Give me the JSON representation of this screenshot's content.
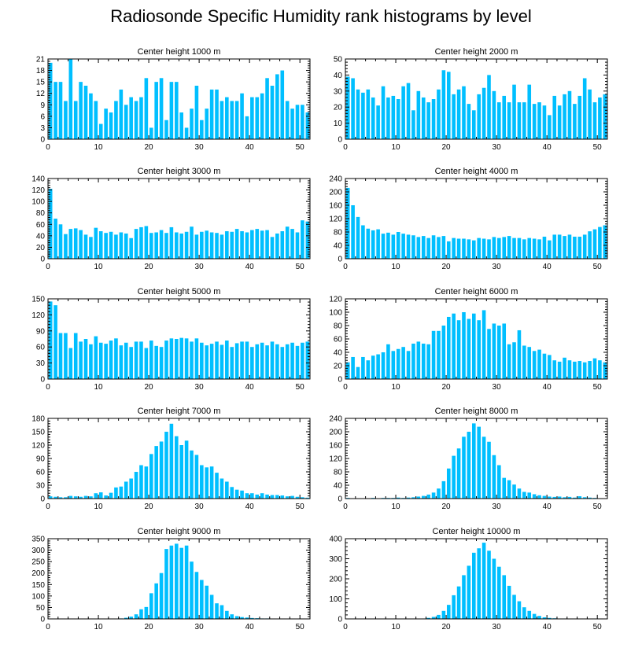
{
  "title": "Radiosonde Specific Humidity rank histograms by level",
  "bar_color": "#00bfff",
  "chart_data": [
    {
      "type": "bar",
      "title": "Center height 1000 m",
      "xlim": [
        0,
        52
      ],
      "ylim": [
        0,
        21
      ],
      "yticks": [
        0,
        3,
        6,
        9,
        12,
        15,
        18,
        21
      ],
      "xticks": [
        0,
        10,
        20,
        30,
        40,
        50
      ],
      "values": [
        20,
        15,
        15,
        10,
        21,
        10,
        15,
        14,
        12,
        10,
        4,
        8,
        7,
        10,
        13,
        9,
        11,
        10,
        11,
        16,
        3,
        15,
        16,
        5,
        15,
        15,
        7,
        3,
        8,
        14,
        5,
        8,
        13,
        13,
        10,
        11,
        10,
        10,
        12,
        6,
        11,
        11,
        12,
        16,
        14,
        17,
        18,
        10,
        8,
        9,
        9,
        7
      ]
    },
    {
      "type": "bar",
      "title": "Center height 2000 m",
      "xlim": [
        0,
        52
      ],
      "ylim": [
        0,
        50
      ],
      "yticks": [
        0,
        10,
        20,
        30,
        40,
        50
      ],
      "xticks": [
        0,
        10,
        20,
        30,
        40,
        50
      ],
      "values": [
        39,
        38,
        31,
        29,
        31,
        26,
        21,
        33,
        26,
        27,
        25,
        33,
        35,
        18,
        30,
        26,
        23,
        25,
        31,
        43,
        42,
        28,
        31,
        33,
        22,
        18,
        28,
        32,
        40,
        30,
        23,
        27,
        23,
        34,
        23,
        23,
        34,
        22,
        23,
        21,
        15,
        27,
        21,
        28,
        30,
        22,
        27,
        38,
        31,
        23,
        26,
        28
      ]
    },
    {
      "type": "bar",
      "title": "Center height 3000 m",
      "xlim": [
        0,
        52
      ],
      "ylim": [
        0,
        140
      ],
      "yticks": [
        0,
        20,
        40,
        60,
        80,
        100,
        120,
        140
      ],
      "xticks": [
        0,
        10,
        20,
        30,
        40,
        50
      ],
      "values": [
        122,
        70,
        60,
        43,
        52,
        53,
        50,
        42,
        38,
        54,
        48,
        45,
        47,
        42,
        46,
        44,
        36,
        52,
        55,
        57,
        45,
        46,
        50,
        45,
        55,
        46,
        44,
        47,
        56,
        42,
        47,
        49,
        46,
        45,
        42,
        48,
        47,
        52,
        48,
        46,
        50,
        52,
        49,
        50,
        38,
        44,
        48,
        56,
        52,
        46,
        67,
        65
      ]
    },
    {
      "type": "bar",
      "title": "Center height 4000 m",
      "xlim": [
        0,
        52
      ],
      "ylim": [
        0,
        240
      ],
      "yticks": [
        0,
        40,
        80,
        120,
        160,
        200,
        240
      ],
      "xticks": [
        0,
        10,
        20,
        30,
        40,
        50
      ],
      "values": [
        212,
        160,
        125,
        100,
        90,
        85,
        88,
        75,
        78,
        72,
        80,
        75,
        72,
        70,
        65,
        68,
        62,
        70,
        65,
        68,
        52,
        62,
        60,
        60,
        58,
        55,
        62,
        60,
        58,
        65,
        62,
        65,
        68,
        62,
        62,
        58,
        62,
        60,
        58,
        66,
        55,
        72,
        72,
        68,
        72,
        66,
        66,
        72,
        82,
        88,
        95,
        100
      ]
    },
    {
      "type": "bar",
      "title": "Center height 5000 m",
      "xlim": [
        0,
        52
      ],
      "ylim": [
        0,
        150
      ],
      "yticks": [
        0,
        30,
        60,
        90,
        120,
        150
      ],
      "xticks": [
        0,
        10,
        20,
        30,
        40,
        50
      ],
      "values": [
        145,
        138,
        86,
        86,
        58,
        86,
        70,
        75,
        65,
        80,
        68,
        66,
        72,
        76,
        63,
        68,
        60,
        70,
        70,
        58,
        72,
        62,
        60,
        72,
        76,
        75,
        77,
        76,
        70,
        76,
        68,
        63,
        66,
        70,
        64,
        72,
        60,
        67,
        70,
        70,
        60,
        65,
        68,
        63,
        70,
        65,
        60,
        65,
        68,
        62,
        68,
        70
      ]
    },
    {
      "type": "bar",
      "title": "Center height 6000 m",
      "xlim": [
        0,
        52
      ],
      "ylim": [
        0,
        120
      ],
      "yticks": [
        0,
        20,
        40,
        60,
        80,
        100,
        120
      ],
      "xticks": [
        0,
        10,
        20,
        30,
        40,
        50
      ],
      "values": [
        25,
        33,
        18,
        33,
        28,
        35,
        37,
        40,
        52,
        42,
        45,
        48,
        42,
        53,
        56,
        53,
        52,
        72,
        72,
        80,
        93,
        98,
        88,
        100,
        90,
        98,
        88,
        103,
        75,
        83,
        80,
        83,
        52,
        55,
        73,
        50,
        48,
        42,
        44,
        38,
        36,
        28,
        26,
        32,
        28,
        26,
        27,
        25,
        27,
        31,
        28,
        25
      ]
    },
    {
      "type": "bar",
      "title": "Center height 7000 m",
      "xlim": [
        0,
        52
      ],
      "ylim": [
        0,
        180
      ],
      "yticks": [
        0,
        30,
        60,
        90,
        120,
        150,
        180
      ],
      "xticks": [
        0,
        10,
        20,
        30,
        40,
        50
      ],
      "values": [
        5,
        4,
        3,
        3,
        6,
        5,
        4,
        6,
        5,
        12,
        14,
        7,
        13,
        25,
        27,
        38,
        45,
        60,
        75,
        72,
        100,
        118,
        128,
        150,
        168,
        140,
        120,
        130,
        108,
        98,
        75,
        70,
        72,
        58,
        45,
        38,
        26,
        20,
        18,
        12,
        12,
        9,
        12,
        9,
        8,
        8,
        7,
        5,
        6,
        4,
        3,
        2
      ]
    },
    {
      "type": "bar",
      "title": "Center height 8000 m",
      "xlim": [
        0,
        52
      ],
      "ylim": [
        0,
        240
      ],
      "yticks": [
        0,
        40,
        80,
        120,
        160,
        200,
        240
      ],
      "xticks": [
        0,
        10,
        20,
        30,
        40,
        50
      ],
      "values": [
        2,
        1,
        1,
        1,
        1,
        2,
        1,
        2,
        2,
        2,
        3,
        2,
        3,
        4,
        6,
        8,
        12,
        18,
        30,
        52,
        90,
        128,
        150,
        185,
        200,
        225,
        215,
        185,
        170,
        130,
        100,
        62,
        55,
        42,
        30,
        20,
        18,
        13,
        10,
        8,
        6,
        5,
        6,
        4,
        5,
        3,
        7,
        4,
        3,
        2,
        1,
        1
      ]
    },
    {
      "type": "bar",
      "title": "Center height 9000 m",
      "xlim": [
        0,
        52
      ],
      "ylim": [
        0,
        350
      ],
      "yticks": [
        0,
        50,
        100,
        150,
        200,
        250,
        300,
        350
      ],
      "xticks": [
        0,
        10,
        20,
        30,
        40,
        50
      ],
      "values": [
        1,
        1,
        1,
        1,
        1,
        1,
        1,
        1,
        1,
        1,
        1,
        1,
        1,
        1,
        2,
        5,
        10,
        20,
        42,
        52,
        112,
        155,
        200,
        305,
        320,
        328,
        310,
        320,
        250,
        205,
        170,
        145,
        105,
        68,
        60,
        35,
        20,
        12,
        8,
        6,
        4,
        3,
        2,
        2,
        1,
        1,
        1,
        1,
        1,
        1,
        1,
        1
      ]
    },
    {
      "type": "bar",
      "title": "Center height 10000 m",
      "xlim": [
        0,
        52
      ],
      "ylim": [
        0,
        400
      ],
      "yticks": [
        0,
        100,
        200,
        300,
        400
      ],
      "xticks": [
        0,
        10,
        20,
        30,
        40,
        50
      ],
      "values": [
        1,
        1,
        1,
        1,
        1,
        1,
        1,
        1,
        1,
        1,
        1,
        1,
        1,
        1,
        1,
        2,
        5,
        10,
        20,
        40,
        70,
        118,
        162,
        218,
        265,
        330,
        352,
        380,
        340,
        300,
        260,
        218,
        165,
        120,
        88,
        58,
        40,
        25,
        15,
        8,
        5,
        3,
        2,
        2,
        1,
        1,
        1,
        1,
        1,
        1,
        1,
        1
      ]
    }
  ]
}
